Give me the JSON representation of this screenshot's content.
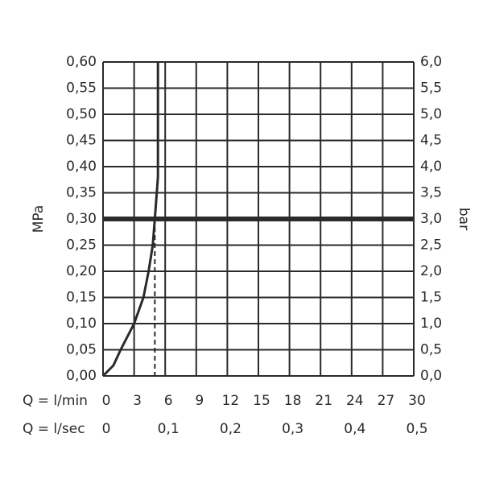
{
  "chart_data": {
    "type": "line",
    "ylabel": "MPa",
    "y2label": "bar",
    "xlabel": "Q = l/min",
    "x2label": "Q = l/sec",
    "xlim": [
      0,
      30
    ],
    "xticks": [
      0,
      3,
      6,
      9,
      12,
      15,
      18,
      21,
      24,
      27,
      30
    ],
    "x2lim": [
      0,
      0.5
    ],
    "x2ticks": [
      0,
      {
        "value": 0.1,
        "label": "0,1"
      },
      {
        "value": 0.2,
        "label": "0,2"
      },
      {
        "value": 0.3,
        "label": "0,3"
      },
      {
        "value": 0.4,
        "label": "0,4"
      },
      {
        "value": 0.5,
        "label": "0,5"
      }
    ],
    "ylim": [
      0,
      0.6
    ],
    "yticks": [
      {
        "value": 0,
        "label": "0,00"
      },
      {
        "value": 0.05,
        "label": "0,05"
      },
      {
        "value": 0.1,
        "label": "0,10"
      },
      {
        "value": 0.15,
        "label": "0,15"
      },
      {
        "value": 0.2,
        "label": "0,20"
      },
      {
        "value": 0.25,
        "label": "0,25"
      },
      {
        "value": 0.3,
        "label": "0,30"
      },
      {
        "value": 0.35,
        "label": "0,35"
      },
      {
        "value": 0.4,
        "label": "0,40"
      },
      {
        "value": 0.45,
        "label": "0,45"
      },
      {
        "value": 0.5,
        "label": "0,50"
      },
      {
        "value": 0.55,
        "label": "0,55"
      },
      {
        "value": 0.6,
        "label": "0,60"
      }
    ],
    "y2lim": [
      0,
      6
    ],
    "y2ticks": [
      {
        "value": 0,
        "label": "0,0"
      },
      {
        "value": 0.5,
        "label": "0,5"
      },
      {
        "value": 1,
        "label": "1,0"
      },
      {
        "value": 1.5,
        "label": "1,5"
      },
      {
        "value": 2,
        "label": "2,0"
      },
      {
        "value": 2.5,
        "label": "2,5"
      },
      {
        "value": 3,
        "label": "3,0"
      },
      {
        "value": 3.5,
        "label": "3,5"
      },
      {
        "value": 4,
        "label": "4,0"
      },
      {
        "value": 4.5,
        "label": "4,5"
      },
      {
        "value": 5,
        "label": "5,0"
      },
      {
        "value": 5.5,
        "label": "5,5"
      },
      {
        "value": 6,
        "label": "6,0"
      }
    ],
    "grid": true,
    "reference_y": 0.3,
    "reference_x": 5.0,
    "color": "#2a2a2a",
    "x": [
      0,
      1,
      1.7,
      3,
      3.9,
      4.4,
      4.8,
      5.0,
      5.3,
      5.3
    ],
    "values": [
      0,
      0.02,
      0.05,
      0.1,
      0.15,
      0.2,
      0.25,
      0.3,
      0.38,
      0.6
    ]
  }
}
